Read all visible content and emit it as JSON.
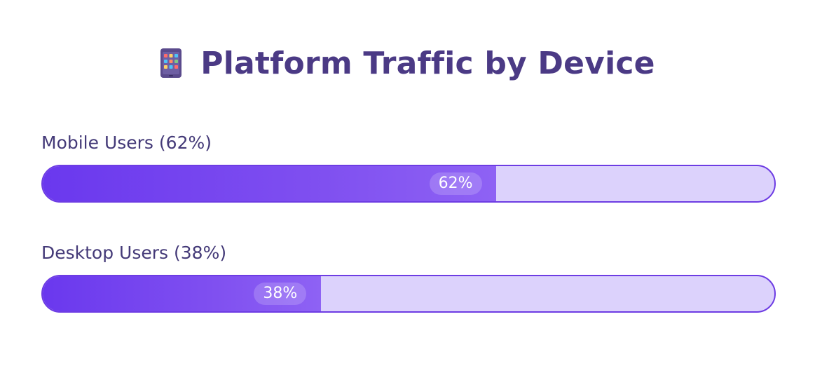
{
  "chart_data": {
    "type": "bar",
    "orientation": "horizontal",
    "title": "Platform Traffic by Device",
    "title_icon": "tablet-app-grid-icon",
    "value_max": 100,
    "unit": "%",
    "categories": [
      "Mobile Users (62%)",
      "Desktop Users (38%)"
    ],
    "values": [
      62,
      38
    ],
    "data_labels": [
      "62%",
      "38%"
    ],
    "legend": "none",
    "grid": false
  },
  "colors": {
    "title": "#4b3a85",
    "label": "#443a78",
    "bar_fill_start": "#6a38ee",
    "bar_fill_end": "#8e62f4",
    "track_background": "#dcd2fc",
    "track_border": "#6d3ce3"
  }
}
